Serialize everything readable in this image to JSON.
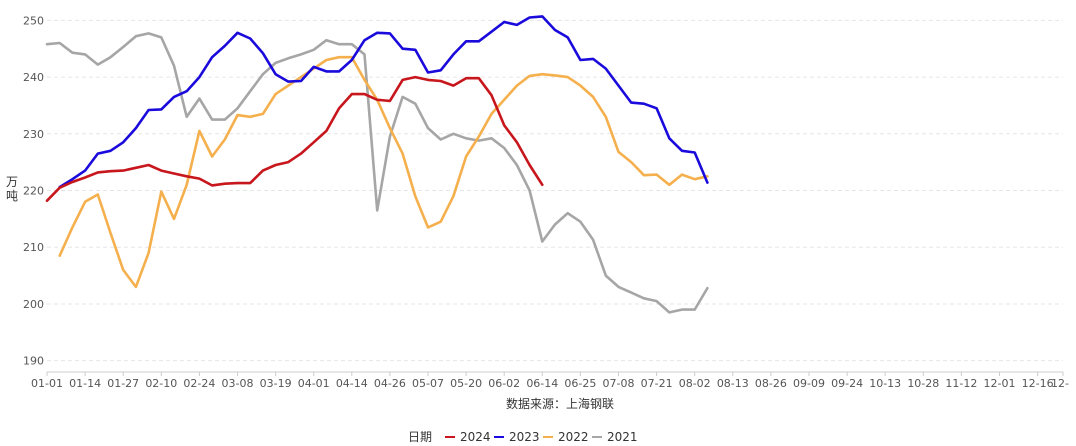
{
  "chart_data": {
    "type": "line",
    "title": "",
    "ylabel": "万吨",
    "xlabel": "数据来源：上海钢联",
    "ylim": [
      188,
      252
    ],
    "yticks": [
      190,
      200,
      210,
      220,
      230,
      240,
      250
    ],
    "x_range": [
      0,
      80
    ],
    "x_ticks": [
      {
        "label": "01-01",
        "x": 0
      },
      {
        "label": "01-14",
        "x": 3
      },
      {
        "label": "01-27",
        "x": 6
      },
      {
        "label": "02-10",
        "x": 9
      },
      {
        "label": "02-24",
        "x": 12
      },
      {
        "label": "03-08",
        "x": 15
      },
      {
        "label": "03-19",
        "x": 18
      },
      {
        "label": "04-01",
        "x": 21
      },
      {
        "label": "04-14",
        "x": 24
      },
      {
        "label": "04-26",
        "x": 27
      },
      {
        "label": "05-07",
        "x": 30
      },
      {
        "label": "05-20",
        "x": 33
      },
      {
        "label": "06-02",
        "x": 36
      },
      {
        "label": "06-14",
        "x": 39
      },
      {
        "label": "06-25",
        "x": 42
      },
      {
        "label": "07-08",
        "x": 45
      },
      {
        "label": "07-21",
        "x": 48
      },
      {
        "label": "08-02",
        "x": 51
      },
      {
        "label": "08-13",
        "x": 54
      },
      {
        "label": "08-26",
        "x": 57
      },
      {
        "label": "09-09",
        "x": 60
      },
      {
        "label": "09-24",
        "x": 63
      },
      {
        "label": "10-13",
        "x": 66
      },
      {
        "label": "10-28",
        "x": 69
      },
      {
        "label": "11-12",
        "x": 72
      },
      {
        "label": "12-01",
        "x": 75
      },
      {
        "label": "12-16",
        "x": 78
      },
      {
        "label": "12-",
        "x": 80
      }
    ],
    "legend_title": "日期",
    "legend_position": "bottom",
    "grid": true,
    "series": [
      {
        "name": "2024",
        "color": "#c8161d",
        "points": [
          [
            0,
            218.2
          ],
          [
            1,
            220.5
          ],
          [
            2,
            221.5
          ],
          [
            3,
            222.3
          ],
          [
            4,
            223.2
          ],
          [
            5,
            223.4
          ],
          [
            6,
            223.5
          ],
          [
            7,
            224.0
          ],
          [
            8,
            224.5
          ],
          [
            9,
            223.5
          ],
          [
            10,
            223.0
          ],
          [
            11,
            222.5
          ],
          [
            12,
            222.1
          ],
          [
            13,
            220.9
          ],
          [
            14,
            221.2
          ],
          [
            15,
            221.3
          ],
          [
            16,
            221.3
          ],
          [
            17,
            223.5
          ],
          [
            18,
            224.5
          ],
          [
            19,
            225.0
          ],
          [
            20,
            226.5
          ],
          [
            21,
            228.5
          ],
          [
            22,
            230.5
          ],
          [
            23,
            234.5
          ],
          [
            24,
            237.0
          ],
          [
            25,
            237.0
          ],
          [
            26,
            236.0
          ],
          [
            27,
            235.8
          ],
          [
            28,
            239.5
          ],
          [
            29,
            240.0
          ],
          [
            30,
            239.5
          ],
          [
            31,
            239.3
          ],
          [
            32,
            238.5
          ],
          [
            33,
            239.8
          ],
          [
            34,
            239.8
          ],
          [
            35,
            236.8
          ],
          [
            36,
            231.5
          ],
          [
            37,
            228.5
          ],
          [
            38,
            224.5
          ],
          [
            39,
            221.0
          ]
        ]
      },
      {
        "name": "2023",
        "color": "#1a0adb",
        "points": [
          [
            1,
            220.6
          ],
          [
            2,
            222.0
          ],
          [
            3,
            223.5
          ],
          [
            4,
            226.5
          ],
          [
            5,
            227.0
          ],
          [
            6,
            228.5
          ],
          [
            7,
            231.0
          ],
          [
            8,
            234.2
          ],
          [
            9,
            234.3
          ],
          [
            10,
            236.5
          ],
          [
            11,
            237.5
          ],
          [
            12,
            240.0
          ],
          [
            13,
            243.5
          ],
          [
            14,
            245.5
          ],
          [
            15,
            247.8
          ],
          [
            16,
            246.8
          ],
          [
            17,
            244.2
          ],
          [
            18,
            240.5
          ],
          [
            19,
            239.2
          ],
          [
            20,
            239.3
          ],
          [
            21,
            241.8
          ],
          [
            22,
            241.0
          ],
          [
            23,
            241.0
          ],
          [
            24,
            243.0
          ],
          [
            25,
            246.5
          ],
          [
            26,
            247.8
          ],
          [
            27,
            247.7
          ],
          [
            28,
            245.0
          ],
          [
            29,
            244.8
          ],
          [
            30,
            240.8
          ],
          [
            31,
            241.2
          ],
          [
            32,
            244.0
          ],
          [
            33,
            246.3
          ],
          [
            34,
            246.3
          ],
          [
            35,
            248.0
          ],
          [
            36,
            249.7
          ],
          [
            37,
            249.2
          ],
          [
            38,
            250.5
          ],
          [
            39,
            250.7
          ],
          [
            40,
            248.3
          ],
          [
            41,
            247.0
          ],
          [
            42,
            243.0
          ],
          [
            43,
            243.2
          ],
          [
            44,
            241.5
          ],
          [
            45,
            238.5
          ],
          [
            46,
            235.5
          ],
          [
            47,
            235.3
          ],
          [
            48,
            234.5
          ],
          [
            49,
            229.2
          ],
          [
            50,
            227.0
          ],
          [
            51,
            226.7
          ],
          [
            52,
            221.4
          ]
        ]
      },
      {
        "name": "2022",
        "color": "#f5b04d",
        "points": [
          [
            1,
            208.5
          ],
          [
            2,
            213.5
          ],
          [
            3,
            218.0
          ],
          [
            4,
            219.3
          ],
          [
            5,
            212.5
          ],
          [
            6,
            206.0
          ],
          [
            7,
            203.0
          ],
          [
            8,
            209.0
          ],
          [
            9,
            219.8
          ],
          [
            10,
            215.0
          ],
          [
            11,
            221.0
          ],
          [
            12,
            230.5
          ],
          [
            13,
            226.0
          ],
          [
            14,
            229.0
          ],
          [
            15,
            233.3
          ],
          [
            16,
            233.0
          ],
          [
            17,
            233.5
          ],
          [
            18,
            237.0
          ],
          [
            19,
            238.5
          ],
          [
            20,
            240.0
          ],
          [
            21,
            241.5
          ],
          [
            22,
            243.0
          ],
          [
            23,
            243.5
          ],
          [
            24,
            243.5
          ],
          [
            25,
            239.5
          ],
          [
            26,
            236.0
          ],
          [
            27,
            231.0
          ],
          [
            28,
            226.5
          ],
          [
            29,
            219.0
          ],
          [
            30,
            213.5
          ],
          [
            31,
            214.5
          ],
          [
            32,
            219.0
          ],
          [
            33,
            226.0
          ],
          [
            34,
            229.5
          ],
          [
            35,
            233.5
          ],
          [
            36,
            236.0
          ],
          [
            37,
            238.5
          ],
          [
            38,
            240.2
          ],
          [
            39,
            240.5
          ],
          [
            40,
            240.3
          ],
          [
            41,
            240.0
          ],
          [
            42,
            238.5
          ],
          [
            43,
            236.5
          ],
          [
            44,
            233.0
          ],
          [
            45,
            226.8
          ],
          [
            46,
            225.0
          ],
          [
            47,
            222.7
          ],
          [
            48,
            222.8
          ],
          [
            49,
            221.0
          ],
          [
            50,
            222.8
          ],
          [
            51,
            222.0
          ],
          [
            52,
            222.5
          ]
        ]
      },
      {
        "name": "2021",
        "color": "#a6a6a6",
        "points": [
          [
            0,
            245.8
          ],
          [
            1,
            246.0
          ],
          [
            2,
            244.3
          ],
          [
            3,
            244.0
          ],
          [
            4,
            242.2
          ],
          [
            5,
            243.5
          ],
          [
            6,
            245.3
          ],
          [
            7,
            247.2
          ],
          [
            8,
            247.7
          ],
          [
            9,
            247.0
          ],
          [
            10,
            242.0
          ],
          [
            11,
            233.0
          ],
          [
            12,
            236.2
          ],
          [
            13,
            232.5
          ],
          [
            14,
            232.5
          ],
          [
            15,
            234.5
          ],
          [
            16,
            237.5
          ],
          [
            17,
            240.5
          ],
          [
            18,
            242.5
          ],
          [
            19,
            243.3
          ],
          [
            20,
            244.0
          ],
          [
            21,
            244.8
          ],
          [
            22,
            246.5
          ],
          [
            23,
            245.8
          ],
          [
            24,
            245.8
          ],
          [
            25,
            244.0
          ],
          [
            26,
            216.5
          ],
          [
            27,
            229.5
          ],
          [
            28,
            236.5
          ],
          [
            29,
            235.3
          ],
          [
            30,
            231.0
          ],
          [
            31,
            229.0
          ],
          [
            32,
            230.0
          ],
          [
            33,
            229.2
          ],
          [
            34,
            228.8
          ],
          [
            35,
            229.2
          ],
          [
            36,
            227.5
          ],
          [
            37,
            224.5
          ],
          [
            38,
            220.0
          ],
          [
            39,
            211.0
          ],
          [
            40,
            214.0
          ],
          [
            41,
            216.0
          ],
          [
            42,
            214.5
          ],
          [
            43,
            211.3
          ],
          [
            44,
            205.0
          ],
          [
            45,
            203.0
          ],
          [
            46,
            202.0
          ],
          [
            47,
            201.0
          ],
          [
            48,
            200.5
          ],
          [
            49,
            198.5
          ],
          [
            50,
            199.0
          ],
          [
            51,
            199.0
          ],
          [
            52,
            202.8
          ]
        ]
      }
    ]
  }
}
